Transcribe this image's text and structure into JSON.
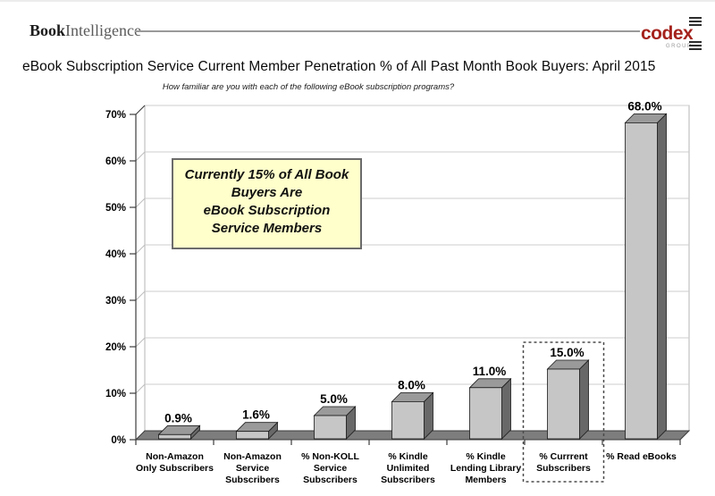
{
  "header": {
    "brand_book": "Book",
    "brand_intelligence": "Intelligence",
    "codex": "codex",
    "codex_group": "GROUP",
    "codex_color": "#a5231d"
  },
  "title": "eBook Subscription Service Current Member Penetration % of All Past Month Book Buyers: April 2015",
  "subtitle": "How familiar are you with each of the following eBook subscription programs?",
  "annotation": {
    "lines": [
      "Currently 15% of All Book",
      "Buyers Are",
      "eBook Subscription",
      "Service Members"
    ],
    "bg_color": "#ffffcc",
    "border_color": "#6b6b6b"
  },
  "chart_data": {
    "type": "bar",
    "style": "3d-column",
    "title": "eBook Subscription Service Current Member Penetration % of All Past Month Book Buyers: April 2015",
    "subtitle": "How familiar are you with each of the following eBook subscription programs?",
    "xlabel": "",
    "ylabel": "",
    "ylim": [
      0,
      70
    ],
    "ytick_step": 10,
    "ytick_labels": [
      "0%",
      "10%",
      "20%",
      "30%",
      "40%",
      "50%",
      "60%",
      "70%"
    ],
    "grid": true,
    "legend": false,
    "categories": [
      [
        "Non-Amazon",
        "Only Subscribers"
      ],
      [
        "Non-Amazon",
        "Service",
        "Subscribers"
      ],
      [
        "% Non-KOLL",
        "Service",
        "Subscribers"
      ],
      [
        "% Kindle",
        "Unlimited",
        "Subscribers"
      ],
      [
        "% Kindle",
        "Lending Library",
        "Members"
      ],
      [
        "% Currrent",
        "Subscribers"
      ],
      [
        "% Read eBooks"
      ]
    ],
    "values": [
      0.9,
      1.6,
      5.0,
      8.0,
      11.0,
      15.0,
      68.0
    ],
    "value_labels": [
      "0.9%",
      "1.6%",
      "5.0%",
      "8.0%",
      "11.0%",
      "15.0%",
      "68.0%"
    ],
    "highlight_index": 5,
    "colors": {
      "bar_front": "#c6c6c6",
      "bar_top": "#9a9a9a",
      "bar_side": "#686868",
      "bar_outline": "#1a1a1a",
      "floor": "#7d7d7d",
      "gridline": "#cccccc",
      "axis": "#3c3c3c",
      "wall_border": "#b5b5b5",
      "connector": "#bdbdbd",
      "highlight_border": "#4a4a4a",
      "label_color": "#000000"
    }
  }
}
